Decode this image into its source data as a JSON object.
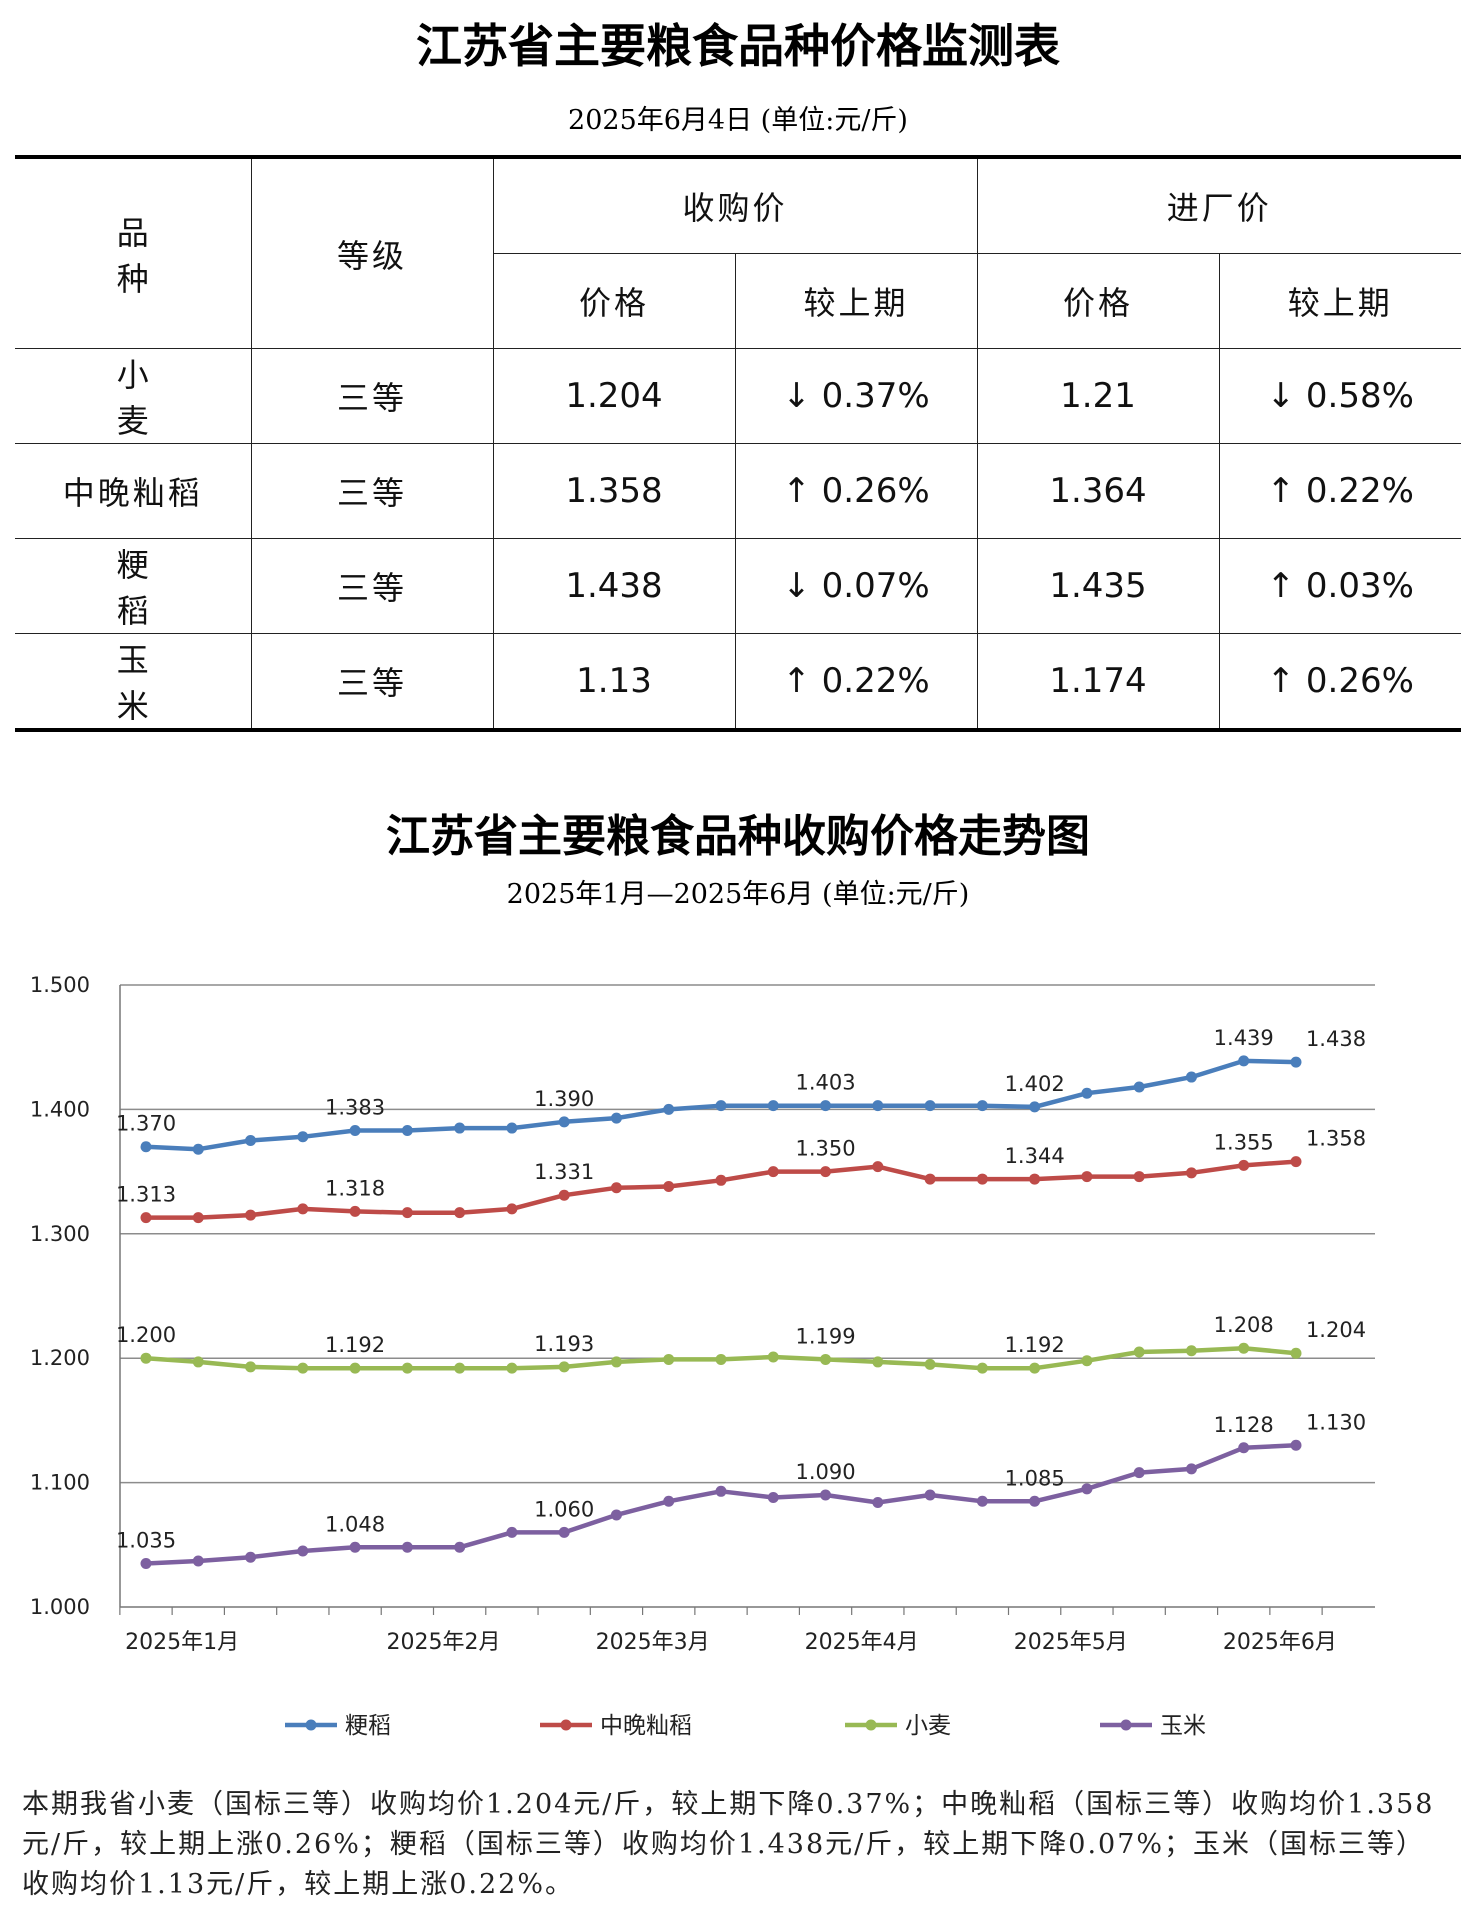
{
  "header": {
    "title": "江苏省主要粮食品种价格监测表",
    "subtitle": "2025年6月4日  (单位:元/斤)"
  },
  "table": {
    "col_variety": "品 种",
    "col_grade": "等级",
    "col_purchase": "收购价",
    "col_factory": "进厂价",
    "col_price": "价格",
    "col_change": "较上期",
    "rows": [
      {
        "variety": "小 麦",
        "grade": "三等",
        "purchase_price": "1.204",
        "purchase_change": "↓ 0.37%",
        "factory_price": "1.21",
        "factory_change": "↓ 0.58%"
      },
      {
        "variety": "中晚籼稻",
        "grade": "三等",
        "purchase_price": "1.358",
        "purchase_change": "↑ 0.26%",
        "factory_price": "1.364",
        "factory_change": "↑ 0.22%"
      },
      {
        "variety": "粳 稻",
        "grade": "三等",
        "purchase_price": "1.438",
        "purchase_change": "↓ 0.07%",
        "factory_price": "1.435",
        "factory_change": "↑ 0.03%"
      },
      {
        "variety": "玉 米",
        "grade": "三等",
        "purchase_price": "1.13",
        "purchase_change": "↑ 0.22%",
        "factory_price": "1.174",
        "factory_change": "↑ 0.26%"
      }
    ]
  },
  "chart_header": {
    "title": "江苏省主要粮食品种收购价格走势图",
    "subtitle": "2025年1月—2025年6月  (单位:元/斤)"
  },
  "chart_data": {
    "type": "line",
    "ylim": [
      1.0,
      1.5
    ],
    "yticks": [
      "1.000",
      "1.100",
      "1.200",
      "1.300",
      "1.400",
      "1.500"
    ],
    "grid": true,
    "legend_position": "bottom",
    "x_labels": [
      "2025年1月",
      "2025年2月",
      "2025年3月",
      "2025年4月",
      "2025年5月",
      "2025年6月"
    ],
    "x_label_index": [
      1,
      6,
      10,
      14,
      18,
      22
    ],
    "series": [
      {
        "name": "粳稻",
        "color": "#4A7EBB",
        "values": [
          1.37,
          1.368,
          1.375,
          1.378,
          1.383,
          1.383,
          1.385,
          1.385,
          1.39,
          1.393,
          1.4,
          1.403,
          1.403,
          1.403,
          1.403,
          1.403,
          1.403,
          1.402,
          1.413,
          1.418,
          1.426,
          1.439,
          1.438
        ],
        "labels": {
          "0": "1.370",
          "4": "1.383",
          "8": "1.390",
          "13": "1.403",
          "17": "1.402",
          "21": "1.439",
          "22": "1.438"
        }
      },
      {
        "name": "中晚籼稻",
        "color": "#BE4B48",
        "values": [
          1.313,
          1.313,
          1.315,
          1.32,
          1.318,
          1.317,
          1.317,
          1.32,
          1.331,
          1.337,
          1.338,
          1.343,
          1.35,
          1.35,
          1.354,
          1.344,
          1.344,
          1.344,
          1.346,
          1.346,
          1.349,
          1.355,
          1.358
        ],
        "labels": {
          "0": "1.313",
          "4": "1.318",
          "8": "1.331",
          "13": "1.350",
          "17": "1.344",
          "21": "1.355",
          "22": "1.358"
        }
      },
      {
        "name": "小麦",
        "color": "#98B954",
        "values": [
          1.2,
          1.197,
          1.193,
          1.192,
          1.192,
          1.192,
          1.192,
          1.192,
          1.193,
          1.197,
          1.199,
          1.199,
          1.201,
          1.199,
          1.197,
          1.195,
          1.192,
          1.192,
          1.198,
          1.205,
          1.206,
          1.208,
          1.204
        ],
        "labels": {
          "0": "1.200",
          "4": "1.192",
          "8": "1.193",
          "13": "1.199",
          "17": "1.192",
          "21": "1.208",
          "22": "1.204"
        }
      },
      {
        "name": "玉米",
        "color": "#7D60A0",
        "values": [
          1.035,
          1.037,
          1.04,
          1.045,
          1.048,
          1.048,
          1.048,
          1.06,
          1.06,
          1.074,
          1.085,
          1.093,
          1.088,
          1.09,
          1.084,
          1.09,
          1.085,
          1.085,
          1.095,
          1.108,
          1.111,
          1.128,
          1.13
        ],
        "labels": {
          "0": "1.035",
          "4": "1.048",
          "8": "1.060",
          "13": "1.090",
          "17": "1.085",
          "21": "1.128",
          "22": "1.130"
        }
      }
    ]
  },
  "summary": "本期我省小麦（国标三等）收购均价1.204元/斤，较上期下降0.37%；中晚籼稻（国标三等）收购均价1.358元/斤，较上期上涨0.26%；粳稻（国标三等）收购均价1.438元/斤，较上期下降0.07%；玉米（国标三等）收购均价1.13元/斤，较上期上涨0.22%。"
}
